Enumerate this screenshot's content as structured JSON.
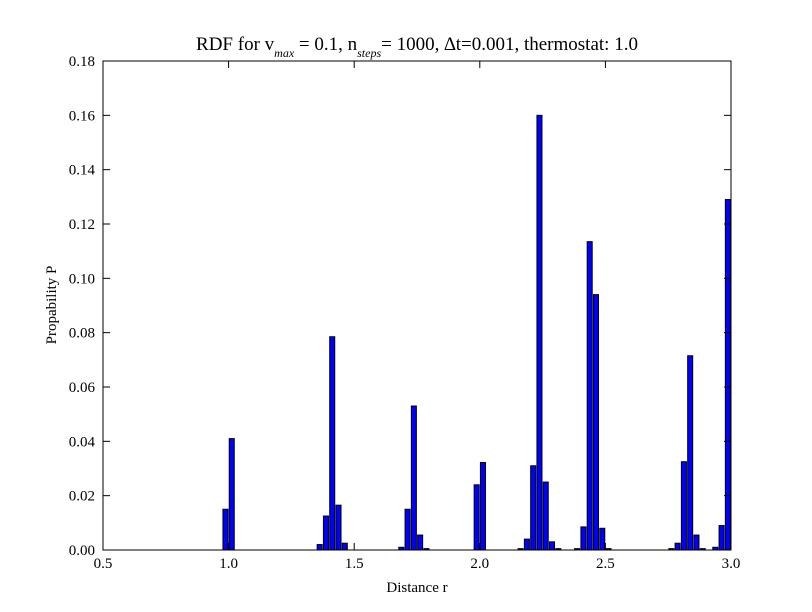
{
  "chart_data": {
    "type": "histogram",
    "title": [
      "RDF for v",
      "max",
      " = 0.1, n",
      "steps",
      "= 1000, ∆t=0.001, thermostat: 1.0"
    ],
    "xlabel": "Distance r",
    "ylabel": "Propability P",
    "color": "#0000ff",
    "edgecolor": "#000000",
    "bins": [
      0.5,
      0.525,
      0.55,
      0.575,
      0.6,
      0.625,
      0.65,
      0.675,
      0.7,
      0.725,
      0.75,
      0.775,
      0.8,
      0.825,
      0.85,
      0.875,
      0.9,
      0.925,
      0.95,
      0.975,
      1.0,
      1.025,
      1.05,
      1.075,
      1.1,
      1.125,
      1.15,
      1.175,
      1.2,
      1.225,
      1.25,
      1.275,
      1.3,
      1.325,
      1.35,
      1.375,
      1.4,
      1.425,
      1.45,
      1.475,
      1.5,
      1.525,
      1.55,
      1.575,
      1.6,
      1.625,
      1.65,
      1.675,
      1.7,
      1.725,
      1.75,
      1.775,
      1.8,
      1.825,
      1.85,
      1.875,
      1.9,
      1.925,
      1.95,
      1.975,
      2.0,
      2.025,
      2.05,
      2.075,
      2.1,
      2.125,
      2.15,
      2.175,
      2.2,
      2.225,
      2.25,
      2.275,
      2.3,
      2.325,
      2.35,
      2.375,
      2.4,
      2.425,
      2.45,
      2.475,
      2.5,
      2.525,
      2.55,
      2.575,
      2.6,
      2.625,
      2.65,
      2.675,
      2.7,
      2.725,
      2.75,
      2.775,
      2.8,
      2.825,
      2.85,
      2.875,
      2.9,
      2.925,
      2.95,
      2.975,
      3.0
    ],
    "values": [
      0,
      0,
      0,
      0,
      0,
      0,
      0,
      0,
      0,
      0,
      0,
      0,
      0,
      0,
      0,
      0,
      0,
      0,
      0,
      0.015,
      0.041,
      0,
      0,
      0,
      0,
      0,
      0,
      0,
      0,
      0,
      0,
      0,
      0,
      0,
      0.002,
      0.0125,
      0.0785,
      0.0165,
      0.0025,
      0,
      0,
      0,
      0,
      0,
      0,
      0,
      0,
      0.001,
      0.015,
      0.053,
      0.0055,
      0.0005,
      0,
      0,
      0,
      0,
      0,
      0,
      0,
      0.024,
      0.0322,
      0,
      0,
      0,
      0,
      0,
      0.0005,
      0.004,
      0.031,
      0.16,
      0.025,
      0.003,
      0.0005,
      0,
      0,
      0.0005,
      0.0085,
      0.1135,
      0.094,
      0.008,
      0.0005,
      0,
      0,
      0,
      0,
      0,
      0,
      0,
      0,
      0,
      0.0005,
      0.0025,
      0.0325,
      0.0715,
      0.0055,
      0.0005,
      0,
      0.001,
      0.009,
      0.129
    ],
    "xlim": [
      0.5,
      3.0
    ],
    "xticks": [
      0.5,
      {
        "value": 1,
        "label": "1.0"
      },
      1.5,
      {
        "value": 2,
        "label": "2.0"
      },
      2.5,
      {
        "value": 3,
        "label": "3.0"
      }
    ],
    "ylim": [
      0,
      0.18
    ],
    "yticks": [
      {
        "value": 0,
        "label": "0.00"
      },
      0.02,
      0.04,
      0.06,
      0.08,
      {
        "value": 0.1,
        "label": "0.10"
      },
      0.12,
      0.14,
      0.16,
      0.18
    ]
  }
}
